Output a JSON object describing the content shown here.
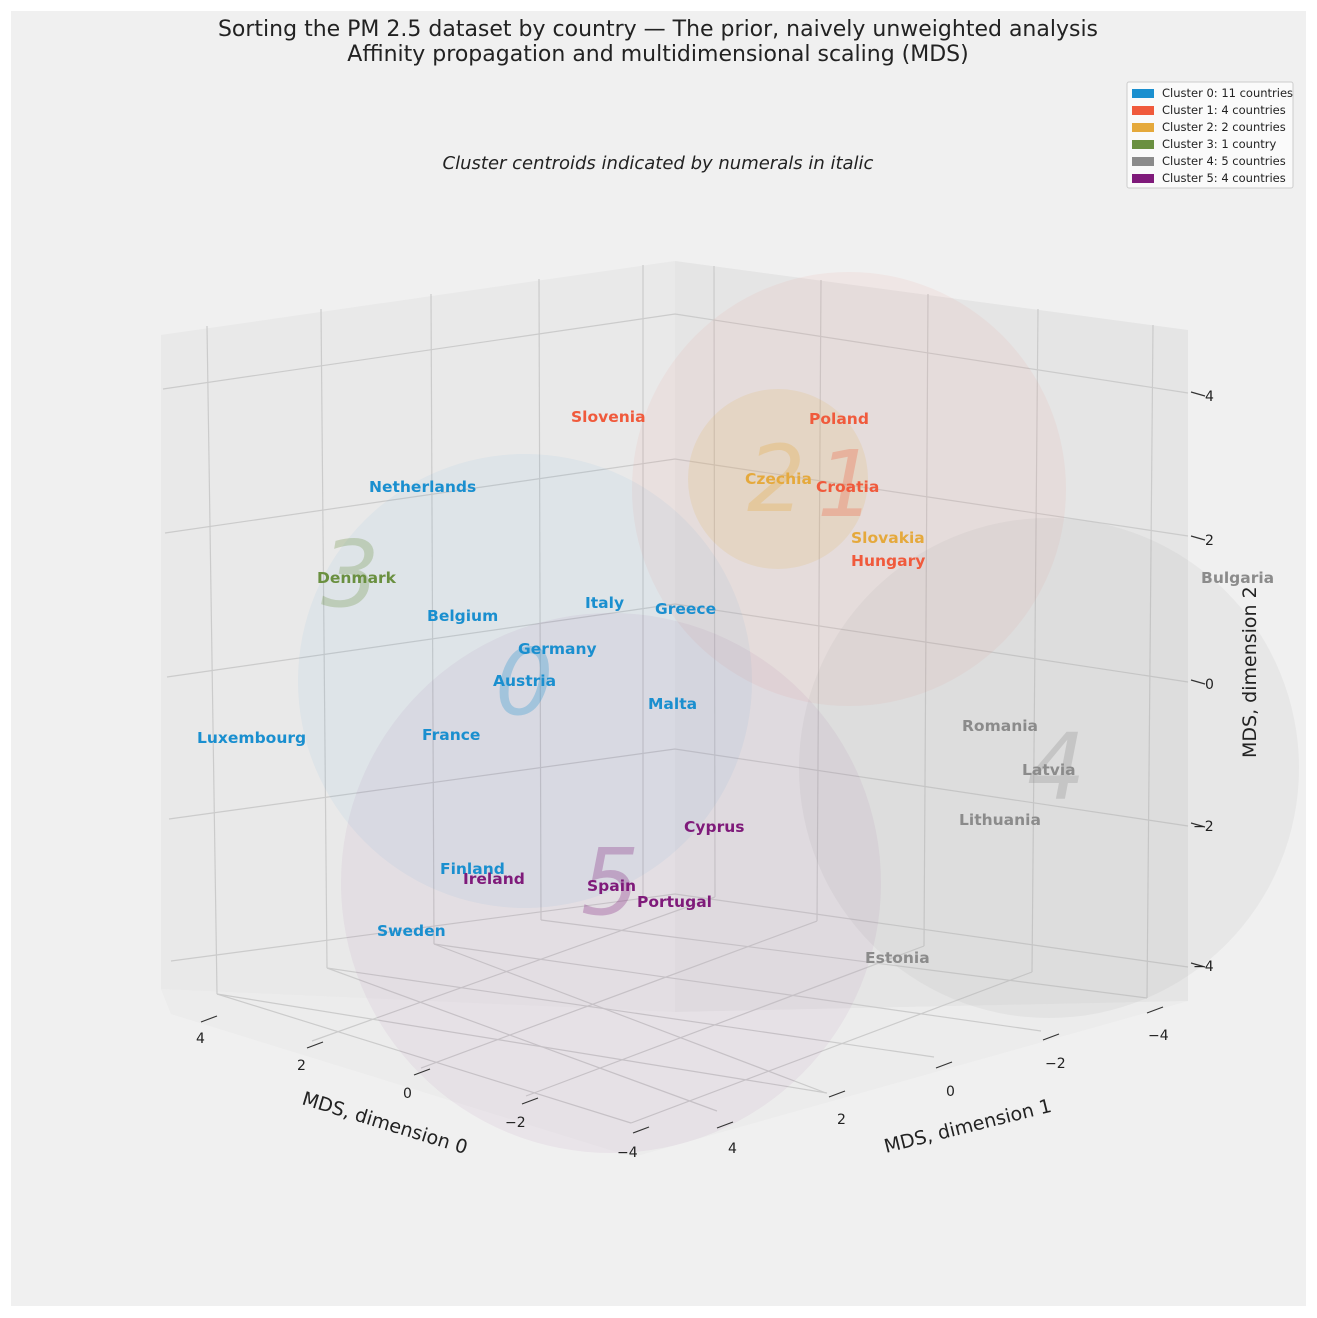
{
  "chart_data": {
    "type": "scatter3d",
    "title": "Sorting the PM 2.5 dataset by country — The prior, naively unweighted analysis",
    "subtitle": "Affinity propagation and multidimensional scaling (MDS)",
    "annotation": "Cluster centroids indicated by numerals in italic",
    "xlabel": "MDS, dimension 0",
    "ylabel": "MDS, dimension 1",
    "zlabel": "MDS, dimension 2",
    "x_ticks": [
      "4",
      "2",
      "0",
      "−2",
      "−4"
    ],
    "y_ticks": [
      "4",
      "2",
      "0",
      "−2",
      "−4"
    ],
    "z_ticks": [
      "4",
      "2",
      "0",
      "−2",
      "−4"
    ],
    "legend": [
      {
        "label": "Cluster 0: 11 countries",
        "color": "#1a8fcf"
      },
      {
        "label": "Cluster 1: 4 countries",
        "color": "#f05a3c"
      },
      {
        "label": "Cluster 2: 2 countries",
        "color": "#e5a93c"
      },
      {
        "label": "Cluster 3: 1 country",
        "color": "#6a9040"
      },
      {
        "label": "Cluster 4: 5 countries",
        "color": "#8b8b8b"
      },
      {
        "label": "Cluster 5: 4 countries",
        "color": "#7f1a7a"
      }
    ],
    "centroids": [
      {
        "label": "0",
        "cluster": 0
      },
      {
        "label": "1",
        "cluster": 1
      },
      {
        "label": "2",
        "cluster": 2
      },
      {
        "label": "3",
        "cluster": 3
      },
      {
        "label": "4",
        "cluster": 4
      },
      {
        "label": "5",
        "cluster": 5
      }
    ],
    "countries": [
      {
        "name": "Slovenia",
        "cluster": 1
      },
      {
        "name": "Poland",
        "cluster": 1
      },
      {
        "name": "Croatia",
        "cluster": 1
      },
      {
        "name": "Hungary",
        "cluster": 1
      },
      {
        "name": "Czechia",
        "cluster": 2
      },
      {
        "name": "Slovakia",
        "cluster": 2
      },
      {
        "name": "Denmark",
        "cluster": 3
      },
      {
        "name": "Netherlands",
        "cluster": 0
      },
      {
        "name": "Belgium",
        "cluster": 0
      },
      {
        "name": "Italy",
        "cluster": 0
      },
      {
        "name": "Greece",
        "cluster": 0
      },
      {
        "name": "Germany",
        "cluster": 0
      },
      {
        "name": "Austria",
        "cluster": 0
      },
      {
        "name": "Malta",
        "cluster": 0
      },
      {
        "name": "Luxembourg",
        "cluster": 0
      },
      {
        "name": "France",
        "cluster": 0
      },
      {
        "name": "Finland",
        "cluster": 0
      },
      {
        "name": "Sweden",
        "cluster": 0
      },
      {
        "name": "Bulgaria",
        "cluster": 4
      },
      {
        "name": "Romania",
        "cluster": 4
      },
      {
        "name": "Latvia",
        "cluster": 4
      },
      {
        "name": "Lithuania",
        "cluster": 4
      },
      {
        "name": "Estonia",
        "cluster": 4
      },
      {
        "name": "Cyprus",
        "cluster": 5
      },
      {
        "name": "Ireland",
        "cluster": 5
      },
      {
        "name": "Spain",
        "cluster": 5
      },
      {
        "name": "Portugal",
        "cluster": 5
      }
    ]
  }
}
